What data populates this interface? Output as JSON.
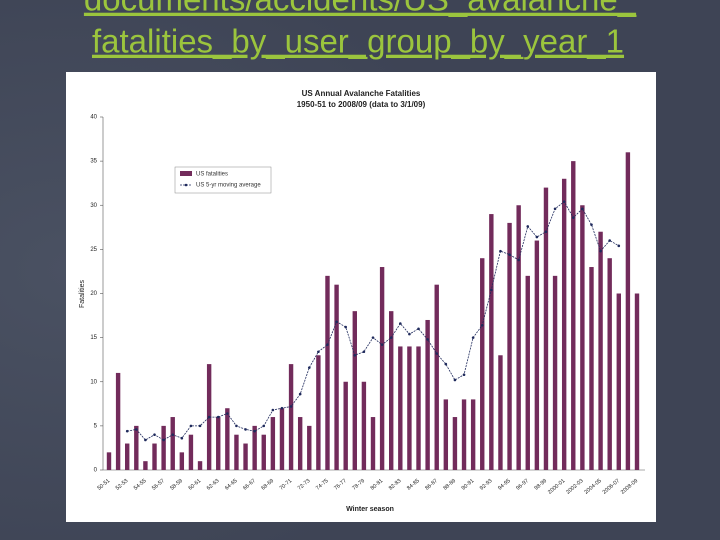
{
  "slide_title": [
    "documents/accidents/US_avalanche_",
    "fatalities_by_user_group_by_year_1"
  ],
  "chart_data": {
    "type": "bar",
    "title": "US Annual Avalanche Fatalities",
    "subtitle": "1950-51 to 2008/09 (data to 3/1/09)",
    "y_label": "Fatalities",
    "x_label": "Winter season",
    "categories": [
      "50-51",
      null,
      "52-53",
      null,
      "54-55",
      null,
      "56-57",
      null,
      "58-59",
      null,
      "60-61",
      null,
      "62-63",
      null,
      "64-65",
      null,
      "66-67",
      null,
      "68-69",
      null,
      "70-71",
      null,
      "72-73",
      null,
      "74-75",
      null,
      "76-77",
      null,
      "78-79",
      null,
      "80-81",
      null,
      "82-83",
      null,
      "84-85",
      null,
      "86-87",
      null,
      "88-89",
      null,
      "90-91",
      null,
      "92-93",
      null,
      "94-95",
      null,
      "96-97",
      null,
      "98-99",
      null,
      "2000-01",
      null,
      "2002-03",
      null,
      "2004-05",
      null,
      "2006-07",
      null,
      "2008-09"
    ],
    "series": [
      {
        "name": "US fatalities",
        "color": "#722b5b",
        "values": [
          2,
          11,
          3,
          5,
          1,
          3,
          5,
          6,
          2,
          4,
          1,
          12,
          6,
          7,
          4,
          3,
          5,
          4,
          6,
          7,
          12,
          6,
          5,
          13,
          22,
          21,
          10,
          18,
          10,
          6,
          23,
          18,
          14,
          14,
          14,
          17,
          21,
          8,
          6,
          8,
          8,
          24,
          29,
          13,
          28,
          30,
          22,
          26,
          32,
          22,
          33,
          35,
          30,
          23,
          27,
          24,
          20,
          36,
          20
        ]
      },
      {
        "name": "US 5-yr moving average",
        "color": "#1f2a5c",
        "type": "line",
        "values": [
          null,
          null,
          4.4,
          4.6,
          3.4,
          4,
          3.4,
          4,
          3.6,
          5,
          5,
          6,
          6,
          6.4,
          5,
          4.6,
          4.4,
          5,
          6.8,
          7,
          7.2,
          8.6,
          11.6,
          13.4,
          14.2,
          16.8,
          16.2,
          13,
          13.4,
          15,
          14.2,
          15,
          16.6,
          15.4,
          16,
          14.8,
          13.2,
          12,
          10.2,
          10.8,
          15,
          16.4,
          20.4,
          24.8,
          24.4,
          23.8,
          27.6,
          26.4,
          27,
          29.6,
          30.4,
          28.6,
          29.6,
          27.8,
          24.8,
          26,
          25.4,
          null,
          null
        ]
      }
    ],
    "ylim": [
      0,
      40
    ],
    "yticks": [
      0,
      5,
      10,
      15,
      20,
      25,
      30,
      35,
      40
    ],
    "legend": "upper left"
  }
}
